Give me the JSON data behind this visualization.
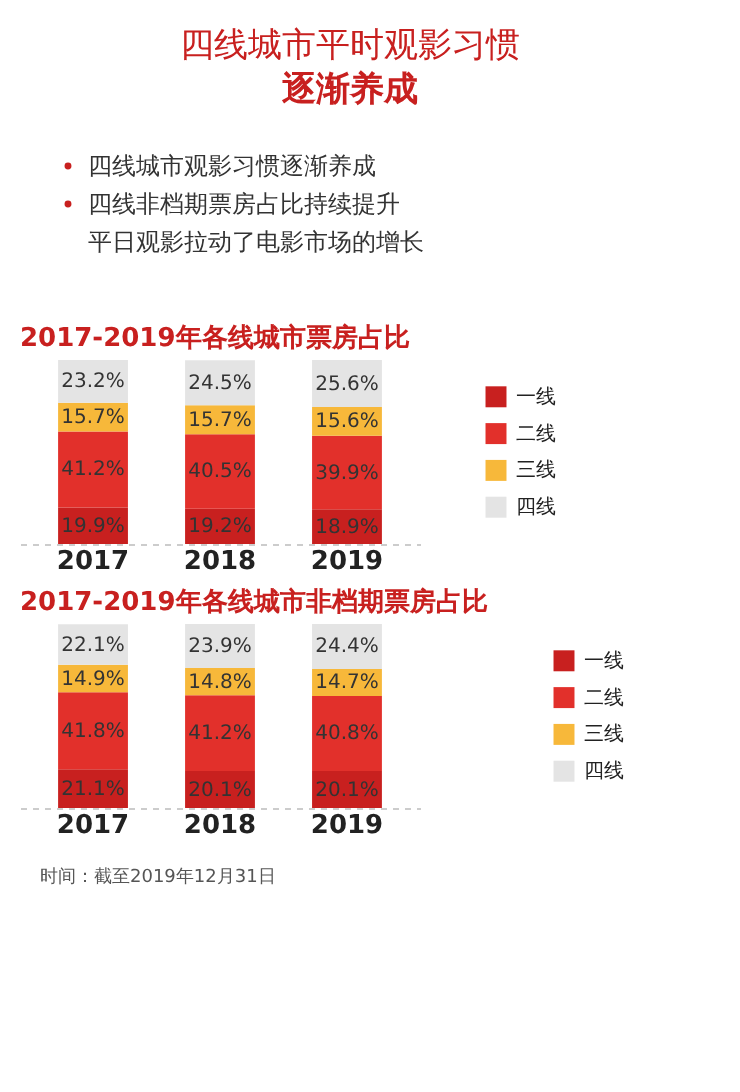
{
  "chart_data": [
    {
      "type": "bar",
      "stacked": true,
      "title": "2017-2019年各线城市票房占比",
      "annotations": [
        "四线城市平时观影习惯",
        "逐渐养成",
        "四线城市观影习惯逐渐养成",
        "四线非档期票房占比持续提升",
        "平日观影拉动了电影市场的增长"
      ],
      "categories": [
        "2017",
        "2018",
        "2019"
      ],
      "legend": "right",
      "series": [
        {
          "name": "一线",
          "color": "#c8201f",
          "values": [
            19.9,
            19.2,
            18.9
          ],
          "value_labels": [
            "19.9%",
            "19.2%",
            "18.9%"
          ]
        },
        {
          "name": "二线",
          "color": "#e2302b",
          "values": [
            41.2,
            40.5,
            39.9
          ],
          "value_labels": [
            "41.2%",
            "40.5%",
            "39.9%"
          ]
        },
        {
          "name": "三线",
          "color": "#f7b83a",
          "values": [
            15.7,
            15.7,
            15.6
          ],
          "value_labels": [
            "15.7%",
            "15.7%",
            "15.6%"
          ]
        },
        {
          "name": "四线",
          "color": "#e4e4e4",
          "values": [
            23.2,
            24.5,
            25.6
          ],
          "value_labels": [
            "23.2%",
            "24.5%",
            "25.6%"
          ]
        }
      ]
    },
    {
      "type": "bar",
      "stacked": true,
      "title": "2017-2019年各线城市非档期票房占比",
      "annotations": [
        "时间：截至2019年12月31日"
      ],
      "categories": [
        "2017",
        "2018",
        "2019"
      ],
      "legend": "right",
      "series": [
        {
          "name": "一线",
          "color": "#c8201f",
          "values": [
            21.1,
            20.1,
            20.1
          ],
          "value_labels": [
            "21.1%",
            "20.1%",
            "20.1%"
          ]
        },
        {
          "name": "二线",
          "color": "#e2302b",
          "values": [
            41.8,
            41.2,
            40.8
          ],
          "value_labels": [
            "41.8%",
            "41.2%",
            "40.8%"
          ]
        },
        {
          "name": "三线",
          "color": "#f7b83a",
          "values": [
            14.9,
            14.8,
            14.7
          ],
          "value_labels": [
            "14.9%",
            "14.8%",
            "14.7%"
          ]
        },
        {
          "name": "四线",
          "color": "#e4e4e4",
          "values": [
            22.1,
            23.9,
            24.4
          ],
          "value_labels": [
            "22.1%",
            "23.9%",
            "24.4%"
          ]
        }
      ]
    }
  ]
}
